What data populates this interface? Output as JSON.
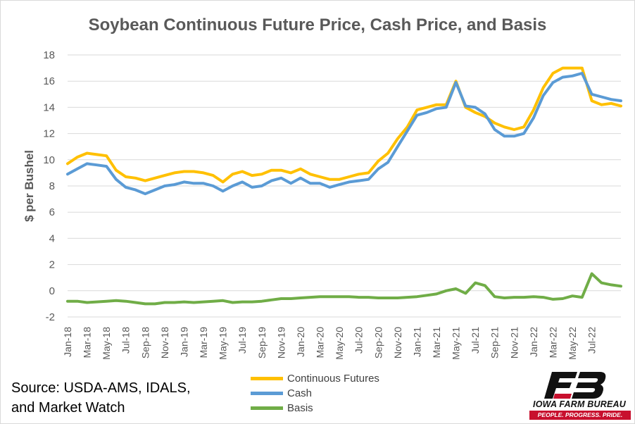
{
  "chart_data": {
    "type": "line",
    "title": "Soybean Continuous Future Price, Cash Price, and Basis",
    "ylabel": "$ per Bushel",
    "xlabel": "",
    "ylim": [
      -2,
      18
    ],
    "yticks": [
      -2,
      0,
      2,
      4,
      6,
      8,
      10,
      12,
      14,
      16,
      18
    ],
    "grid": "horizontal",
    "legend_position": "bottom-center",
    "x_tick_labels": [
      "Jan-18",
      "Mar-18",
      "May-18",
      "Jul-18",
      "Sep-18",
      "Nov-18",
      "Jan-19",
      "Mar-19",
      "May-19",
      "Jul-19",
      "Sep-19",
      "Nov-19",
      "Jan-20",
      "Mar-20",
      "May-20",
      "Jul-20",
      "Sep-20",
      "Nov-20",
      "Jan-21",
      "Mar-21",
      "May-21",
      "Jul-21",
      "Sep-21",
      "Nov-21",
      "Jan-22",
      "Mar-22",
      "May-22",
      "Jul-22"
    ],
    "x": [
      "Jan-18",
      "Feb-18",
      "Mar-18",
      "Apr-18",
      "May-18",
      "Jun-18",
      "Jul-18",
      "Aug-18",
      "Sep-18",
      "Oct-18",
      "Nov-18",
      "Dec-18",
      "Jan-19",
      "Feb-19",
      "Mar-19",
      "Apr-19",
      "May-19",
      "Jun-19",
      "Jul-19",
      "Aug-19",
      "Sep-19",
      "Oct-19",
      "Nov-19",
      "Dec-19",
      "Jan-20",
      "Feb-20",
      "Mar-20",
      "Apr-20",
      "May-20",
      "Jun-20",
      "Jul-20",
      "Aug-20",
      "Sep-20",
      "Oct-20",
      "Nov-20",
      "Dec-20",
      "Jan-21",
      "Feb-21",
      "Mar-21",
      "Apr-21",
      "May-21",
      "Jun-21",
      "Jul-21",
      "Aug-21",
      "Sep-21",
      "Oct-21",
      "Nov-21",
      "Dec-21",
      "Jan-22",
      "Feb-22",
      "Mar-22",
      "Apr-22",
      "May-22",
      "Jun-22",
      "Jul-22",
      "Aug-22",
      "Sep-22",
      "Oct-22"
    ],
    "series": [
      {
        "name": "Continuous Futures",
        "color": "#ffc000",
        "values": [
          9.7,
          10.2,
          10.5,
          10.4,
          10.3,
          9.2,
          8.7,
          8.6,
          8.4,
          8.6,
          8.8,
          9.0,
          9.1,
          9.1,
          9.0,
          8.8,
          8.3,
          8.9,
          9.1,
          8.8,
          8.9,
          9.2,
          9.2,
          9.0,
          9.3,
          8.9,
          8.7,
          8.5,
          8.5,
          8.7,
          8.9,
          9.0,
          9.9,
          10.5,
          11.6,
          12.5,
          13.8,
          14.0,
          14.2,
          14.2,
          16.0,
          14.0,
          13.6,
          13.3,
          12.8,
          12.5,
          12.3,
          12.5,
          13.8,
          15.5,
          16.6,
          17.0,
          17.0,
          17.0,
          14.5,
          14.2,
          14.3,
          14.1
        ]
      },
      {
        "name": "Cash",
        "color": "#5b9bd5",
        "values": [
          8.9,
          9.3,
          9.7,
          9.6,
          9.5,
          8.5,
          7.9,
          7.7,
          7.4,
          7.7,
          8.0,
          8.1,
          8.3,
          8.2,
          8.2,
          8.0,
          7.6,
          8.0,
          8.3,
          7.9,
          8.0,
          8.4,
          8.6,
          8.2,
          8.6,
          8.2,
          8.2,
          7.9,
          8.1,
          8.3,
          8.4,
          8.5,
          9.3,
          9.8,
          11.0,
          12.2,
          13.4,
          13.6,
          13.9,
          14.0,
          15.9,
          14.1,
          14.0,
          13.5,
          12.3,
          11.8,
          11.8,
          12.0,
          13.2,
          14.9,
          15.9,
          16.3,
          16.4,
          16.6,
          15.0,
          14.8,
          14.6,
          14.5
        ]
      },
      {
        "name": "Basis",
        "color": "#70ad47",
        "values": [
          -0.8,
          -0.8,
          -0.9,
          -0.85,
          -0.8,
          -0.75,
          -0.8,
          -0.9,
          -1.0,
          -1.0,
          -0.9,
          -0.9,
          -0.85,
          -0.9,
          -0.85,
          -0.8,
          -0.75,
          -0.9,
          -0.85,
          -0.85,
          -0.8,
          -0.7,
          -0.6,
          -0.6,
          -0.55,
          -0.5,
          -0.45,
          -0.45,
          -0.45,
          -0.45,
          -0.5,
          -0.5,
          -0.55,
          -0.55,
          -0.55,
          -0.5,
          -0.45,
          -0.35,
          -0.25,
          0.0,
          0.15,
          -0.2,
          0.6,
          0.4,
          -0.45,
          -0.55,
          -0.5,
          -0.5,
          -0.45,
          -0.5,
          -0.65,
          -0.6,
          -0.4,
          -0.5,
          1.3,
          0.6,
          0.45,
          0.35
        ]
      }
    ]
  },
  "source_lines": [
    "Source: USDA-AMS, IDALS,",
    "and Market Watch"
  ],
  "logo": {
    "name": "IOWA FARM BUREAU",
    "tagline": "PEOPLE. PROGRESS. PRIDE.",
    "brand_color": "#c8102e"
  }
}
